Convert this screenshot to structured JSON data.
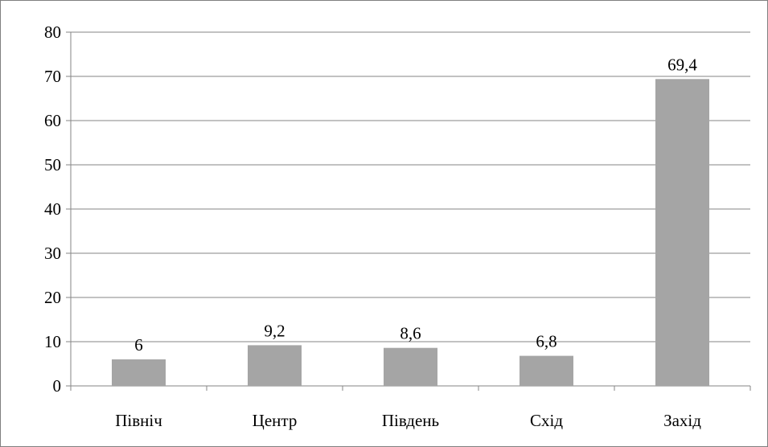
{
  "chart_data": {
    "type": "bar",
    "categories": [
      "Північ",
      "Центр",
      "Південь",
      "Схід",
      "Захід"
    ],
    "values": [
      6,
      9.2,
      8.6,
      6.8,
      69.4
    ],
    "data_labels": [
      "6",
      "9,2",
      "8,6",
      "6,8",
      "69,4"
    ],
    "y_ticks": [
      "0",
      "10",
      "20",
      "30",
      "40",
      "50",
      "60",
      "70",
      "80"
    ],
    "title": "",
    "xlabel": "",
    "ylabel": "",
    "ylim": [
      0,
      80
    ],
    "grid": true,
    "legend": "none",
    "bar_color": "#a5a5a5"
  }
}
